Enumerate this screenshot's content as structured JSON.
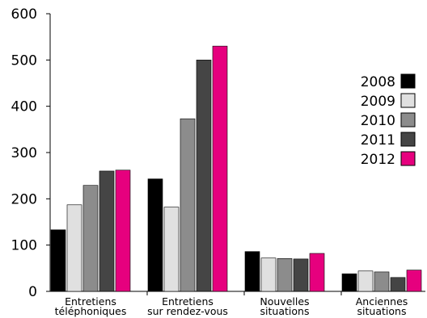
{
  "chart_data": {
    "type": "bar",
    "categories": [
      [
        "Entretiens",
        "téléphoniques"
      ],
      [
        "Entretiens",
        "sur rendez-vous"
      ],
      [
        "Nouvelles",
        "situations"
      ],
      [
        "Anciennes",
        "situations"
      ]
    ],
    "series": [
      {
        "name": "2008",
        "color": "#000000",
        "values": [
          133,
          243,
          86,
          38
        ]
      },
      {
        "name": "2009",
        "color": "#e0e0e0",
        "values": [
          187,
          182,
          72,
          44
        ]
      },
      {
        "name": "2010",
        "color": "#8c8c8c",
        "values": [
          229,
          373,
          71,
          42
        ]
      },
      {
        "name": "2011",
        "color": "#454545",
        "values": [
          260,
          500,
          70,
          30
        ]
      },
      {
        "name": "2012",
        "color": "#e6007e",
        "values": [
          262,
          530,
          82,
          46
        ]
      }
    ],
    "ylim": [
      0,
      600
    ],
    "yticks": [
      "0",
      "100",
      "200",
      "300",
      "400",
      "500",
      "600"
    ],
    "legend_position": "right",
    "grid": false
  }
}
